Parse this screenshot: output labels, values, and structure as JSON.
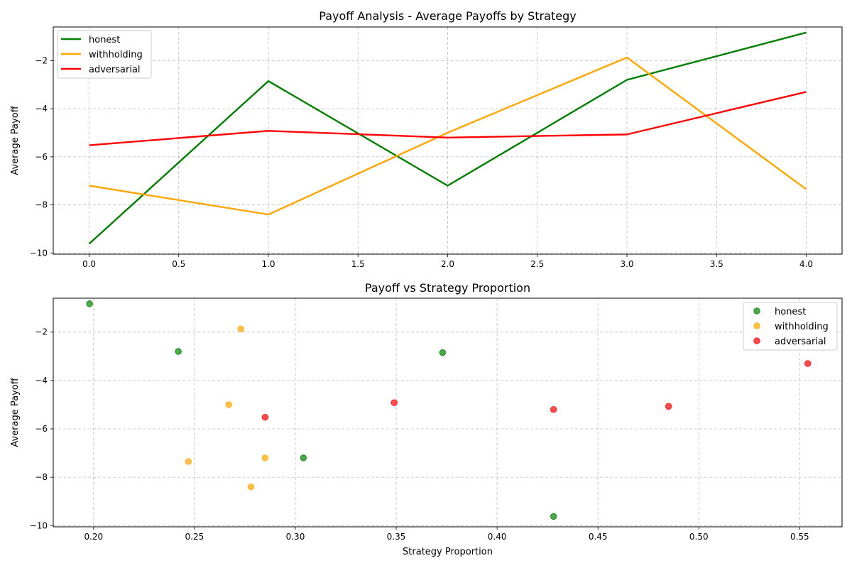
{
  "chart_data": [
    {
      "type": "line",
      "title": "Payoff Analysis - Average Payoffs by Strategy",
      "xlabel": "",
      "ylabel": "Average Payoff",
      "xlim": [
        -0.2,
        4.2
      ],
      "ylim": [
        -10.05,
        -0.6
      ],
      "xticks": [
        0.0,
        0.5,
        1.0,
        1.5,
        2.0,
        2.5,
        3.0,
        3.5,
        4.0
      ],
      "xtick_labels": [
        "0.0",
        "0.5",
        "1.0",
        "1.5",
        "2.0",
        "2.5",
        "3.0",
        "3.5",
        "4.0"
      ],
      "yticks": [
        -10,
        -8,
        -6,
        -4,
        -2
      ],
      "ytick_labels": [
        "−10",
        "−8",
        "−6",
        "−4",
        "−2"
      ],
      "grid": true,
      "legend": "top-left",
      "x": [
        0,
        1,
        2,
        3,
        4
      ],
      "series": [
        {
          "name": "honest",
          "color": "#008000",
          "values": [
            -9.62,
            -2.85,
            -7.2,
            -2.8,
            -0.83
          ]
        },
        {
          "name": "withholding",
          "color": "#ffa500",
          "values": [
            -7.2,
            -8.4,
            -5.0,
            -1.87,
            -7.35
          ]
        },
        {
          "name": "adversarial",
          "color": "#ff0000",
          "values": [
            -5.52,
            -4.92,
            -5.2,
            -5.07,
            -3.3
          ]
        }
      ]
    },
    {
      "type": "scatter",
      "title": "Payoff vs Strategy Proportion",
      "xlabel": "Strategy Proportion",
      "ylabel": "Average Payoff",
      "xlim": [
        0.18,
        0.571
      ],
      "ylim": [
        -10.05,
        -0.6
      ],
      "xticks": [
        0.2,
        0.25,
        0.3,
        0.35,
        0.4,
        0.45,
        0.5,
        0.55
      ],
      "xtick_labels": [
        "0.20",
        "0.25",
        "0.30",
        "0.35",
        "0.40",
        "0.45",
        "0.50",
        "0.55"
      ],
      "yticks": [
        -10,
        -8,
        -6,
        -4,
        -2
      ],
      "ytick_labels": [
        "−10",
        "−8",
        "−6",
        "−4",
        "−2"
      ],
      "grid": true,
      "legend": "top-right",
      "series": [
        {
          "name": "honest",
          "color": "#008000",
          "points": [
            [
              0.198,
              -0.83
            ],
            [
              0.242,
              -2.8
            ],
            [
              0.304,
              -7.2
            ],
            [
              0.373,
              -2.85
            ],
            [
              0.428,
              -9.62
            ]
          ]
        },
        {
          "name": "withholding",
          "color": "#ffa500",
          "points": [
            [
              0.247,
              -7.35
            ],
            [
              0.267,
              -5.0
            ],
            [
              0.273,
              -1.87
            ],
            [
              0.278,
              -8.4
            ],
            [
              0.285,
              -7.2
            ]
          ]
        },
        {
          "name": "adversarial",
          "color": "#ff0000",
          "points": [
            [
              0.285,
              -5.52
            ],
            [
              0.349,
              -4.92
            ],
            [
              0.428,
              -5.2
            ],
            [
              0.485,
              -5.07
            ],
            [
              0.554,
              -3.3
            ]
          ]
        }
      ]
    }
  ]
}
